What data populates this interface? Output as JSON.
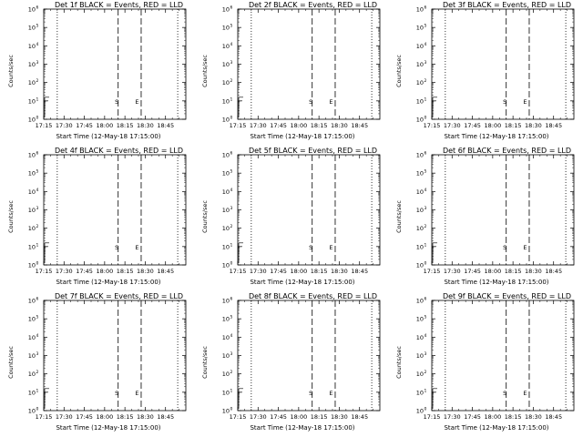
{
  "figure": {
    "ylabel": "Counts/sec",
    "xlabel": "Start Time (12-May-18 17:15:00)"
  },
  "colors": {
    "axes": "#000000",
    "events": "#000000",
    "lld": "#ff0000"
  },
  "chart_data": [
    {
      "type": "line",
      "title": "Det 1f BLACK = Events, RED = LLD",
      "xlabel": "Start Time (12-May-18 17:15:00)",
      "ylabel": "Counts/sec",
      "x_ticks": [
        "17:15",
        "17:30",
        "17:45",
        "18:00",
        "18:15",
        "18:30",
        "18:45"
      ],
      "y_ticks": [
        {
          "base": "10",
          "exp": "0"
        },
        {
          "base": "10",
          "exp": "1"
        },
        {
          "base": "10",
          "exp": "2"
        },
        {
          "base": "10",
          "exp": "3"
        },
        {
          "base": "10",
          "exp": "4"
        },
        {
          "base": "10",
          "exp": "5"
        },
        {
          "base": "10",
          "exp": "6"
        }
      ],
      "yscale": "log",
      "ylim": [
        1,
        1000000
      ],
      "xlim_minutes": [
        0,
        105
      ],
      "dotted_lines_minutes": [
        10,
        99
      ],
      "dashed_lines_minutes": [
        55,
        72
      ],
      "markers": [
        {
          "label": "S",
          "x_minutes": 56
        },
        {
          "label": "E",
          "x_minutes": 71
        }
      ],
      "grid": false
    },
    {
      "type": "line",
      "title": "Det 2f BLACK = Events, RED = LLD",
      "xlabel": "Start Time (12-May-18 17:15:00)",
      "ylabel": "Counts/sec",
      "x_ticks": [
        "17:15",
        "17:30",
        "17:45",
        "18:00",
        "18:15",
        "18:30",
        "18:45"
      ],
      "y_ticks": [
        {
          "base": "10",
          "exp": "0"
        },
        {
          "base": "10",
          "exp": "1"
        },
        {
          "base": "10",
          "exp": "2"
        },
        {
          "base": "10",
          "exp": "3"
        },
        {
          "base": "10",
          "exp": "4"
        },
        {
          "base": "10",
          "exp": "5"
        },
        {
          "base": "10",
          "exp": "6"
        }
      ],
      "yscale": "log",
      "ylim": [
        1,
        1000000
      ],
      "xlim_minutes": [
        0,
        105
      ],
      "dotted_lines_minutes": [
        10,
        99
      ],
      "dashed_lines_minutes": [
        55,
        72
      ],
      "markers": [
        {
          "label": "S",
          "x_minutes": 56
        },
        {
          "label": "E",
          "x_minutes": 71
        }
      ],
      "grid": false
    },
    {
      "type": "line",
      "title": "Det 3f BLACK = Events, RED = LLD",
      "xlabel": "Start Time (12-May-18 17:15:00)",
      "ylabel": "Counts/sec",
      "x_ticks": [
        "17:15",
        "17:30",
        "17:45",
        "18:00",
        "18:15",
        "18:30",
        "18:45"
      ],
      "y_ticks": [
        {
          "base": "10",
          "exp": "0"
        },
        {
          "base": "10",
          "exp": "1"
        },
        {
          "base": "10",
          "exp": "2"
        },
        {
          "base": "10",
          "exp": "3"
        },
        {
          "base": "10",
          "exp": "4"
        },
        {
          "base": "10",
          "exp": "5"
        },
        {
          "base": "10",
          "exp": "6"
        }
      ],
      "yscale": "log",
      "ylim": [
        1,
        1000000
      ],
      "xlim_minutes": [
        0,
        105
      ],
      "dotted_lines_minutes": [
        10,
        99
      ],
      "dashed_lines_minutes": [
        55,
        72
      ],
      "markers": [
        {
          "label": "S",
          "x_minutes": 56
        },
        {
          "label": "E",
          "x_minutes": 71
        }
      ],
      "grid": false
    },
    {
      "type": "line",
      "title": "Det 4f BLACK = Events, RED = LLD",
      "xlabel": "Start Time (12-May-18 17:15:00)",
      "ylabel": "Counts/sec",
      "x_ticks": [
        "17:15",
        "17:30",
        "17:45",
        "18:00",
        "18:15",
        "18:30",
        "18:45"
      ],
      "y_ticks": [
        {
          "base": "10",
          "exp": "0"
        },
        {
          "base": "10",
          "exp": "1"
        },
        {
          "base": "10",
          "exp": "2"
        },
        {
          "base": "10",
          "exp": "3"
        },
        {
          "base": "10",
          "exp": "4"
        },
        {
          "base": "10",
          "exp": "5"
        },
        {
          "base": "10",
          "exp": "6"
        }
      ],
      "yscale": "log",
      "ylim": [
        1,
        1000000
      ],
      "xlim_minutes": [
        0,
        105
      ],
      "dotted_lines_minutes": [
        10,
        99
      ],
      "dashed_lines_minutes": [
        55,
        72
      ],
      "markers": [
        {
          "label": "S",
          "x_minutes": 56
        },
        {
          "label": "E",
          "x_minutes": 71
        }
      ],
      "grid": false
    },
    {
      "type": "line",
      "title": "Det 5f BLACK = Events, RED = LLD",
      "xlabel": "Start Time (12-May-18 17:15:00)",
      "ylabel": "Counts/sec",
      "x_ticks": [
        "17:15",
        "17:30",
        "17:45",
        "18:00",
        "18:15",
        "18:30",
        "18:45"
      ],
      "y_ticks": [
        {
          "base": "10",
          "exp": "0"
        },
        {
          "base": "10",
          "exp": "1"
        },
        {
          "base": "10",
          "exp": "2"
        },
        {
          "base": "10",
          "exp": "3"
        },
        {
          "base": "10",
          "exp": "4"
        },
        {
          "base": "10",
          "exp": "5"
        },
        {
          "base": "10",
          "exp": "6"
        }
      ],
      "yscale": "log",
      "ylim": [
        1,
        1000000
      ],
      "xlim_minutes": [
        0,
        105
      ],
      "dotted_lines_minutes": [
        10,
        99
      ],
      "dashed_lines_minutes": [
        55,
        72
      ],
      "markers": [
        {
          "label": "S",
          "x_minutes": 56
        },
        {
          "label": "E",
          "x_minutes": 71
        }
      ],
      "grid": false
    },
    {
      "type": "line",
      "title": "Det 6f BLACK = Events, RED = LLD",
      "xlabel": "Start Time (12-May-18 17:15:00)",
      "ylabel": "Counts/sec",
      "x_ticks": [
        "17:15",
        "17:30",
        "17:45",
        "18:00",
        "18:15",
        "18:30",
        "18:45"
      ],
      "y_ticks": [
        {
          "base": "10",
          "exp": "0"
        },
        {
          "base": "10",
          "exp": "1"
        },
        {
          "base": "10",
          "exp": "2"
        },
        {
          "base": "10",
          "exp": "3"
        },
        {
          "base": "10",
          "exp": "4"
        },
        {
          "base": "10",
          "exp": "5"
        },
        {
          "base": "10",
          "exp": "6"
        }
      ],
      "yscale": "log",
      "ylim": [
        1,
        1000000
      ],
      "xlim_minutes": [
        0,
        105
      ],
      "dotted_lines_minutes": [
        10,
        99
      ],
      "dashed_lines_minutes": [
        55,
        72
      ],
      "markers": [
        {
          "label": "S",
          "x_minutes": 56
        },
        {
          "label": "E",
          "x_minutes": 71
        }
      ],
      "grid": false
    },
    {
      "type": "line",
      "title": "Det 7f BLACK = Events, RED = LLD",
      "xlabel": "Start Time (12-May-18 17:15:00)",
      "ylabel": "Counts/sec",
      "x_ticks": [
        "17:15",
        "17:30",
        "17:45",
        "18:00",
        "18:15",
        "18:30",
        "18:45"
      ],
      "y_ticks": [
        {
          "base": "10",
          "exp": "0"
        },
        {
          "base": "10",
          "exp": "1"
        },
        {
          "base": "10",
          "exp": "2"
        },
        {
          "base": "10",
          "exp": "3"
        },
        {
          "base": "10",
          "exp": "4"
        },
        {
          "base": "10",
          "exp": "5"
        },
        {
          "base": "10",
          "exp": "6"
        }
      ],
      "yscale": "log",
      "ylim": [
        1,
        1000000
      ],
      "xlim_minutes": [
        0,
        105
      ],
      "dotted_lines_minutes": [
        10,
        99
      ],
      "dashed_lines_minutes": [
        55,
        72
      ],
      "markers": [
        {
          "label": "S",
          "x_minutes": 56
        },
        {
          "label": "E",
          "x_minutes": 71
        }
      ],
      "grid": false
    },
    {
      "type": "line",
      "title": "Det 8f BLACK = Events, RED = LLD",
      "xlabel": "Start Time (12-May-18 17:15:00)",
      "ylabel": "Counts/sec",
      "x_ticks": [
        "17:15",
        "17:30",
        "17:45",
        "18:00",
        "18:15",
        "18:30",
        "18:45"
      ],
      "y_ticks": [
        {
          "base": "10",
          "exp": "0"
        },
        {
          "base": "10",
          "exp": "1"
        },
        {
          "base": "10",
          "exp": "2"
        },
        {
          "base": "10",
          "exp": "3"
        },
        {
          "base": "10",
          "exp": "4"
        },
        {
          "base": "10",
          "exp": "5"
        },
        {
          "base": "10",
          "exp": "6"
        }
      ],
      "yscale": "log",
      "ylim": [
        1,
        1000000
      ],
      "xlim_minutes": [
        0,
        105
      ],
      "dotted_lines_minutes": [
        10,
        99
      ],
      "dashed_lines_minutes": [
        55,
        72
      ],
      "markers": [
        {
          "label": "S",
          "x_minutes": 56
        },
        {
          "label": "E",
          "x_minutes": 71
        }
      ],
      "grid": false
    },
    {
      "type": "line",
      "title": "Det 9f BLACK = Events, RED = LLD",
      "xlabel": "Start Time (12-May-18 17:15:00)",
      "ylabel": "Counts/sec",
      "x_ticks": [
        "17:15",
        "17:30",
        "17:45",
        "18:00",
        "18:15",
        "18:30",
        "18:45"
      ],
      "y_ticks": [
        {
          "base": "10",
          "exp": "0"
        },
        {
          "base": "10",
          "exp": "1"
        },
        {
          "base": "10",
          "exp": "2"
        },
        {
          "base": "10",
          "exp": "3"
        },
        {
          "base": "10",
          "exp": "4"
        },
        {
          "base": "10",
          "exp": "5"
        },
        {
          "base": "10",
          "exp": "6"
        }
      ],
      "yscale": "log",
      "ylim": [
        1,
        1000000
      ],
      "xlim_minutes": [
        0,
        105
      ],
      "dotted_lines_minutes": [
        10,
        99
      ],
      "dashed_lines_minutes": [
        55,
        72
      ],
      "markers": [
        {
          "label": "S",
          "x_minutes": 56
        },
        {
          "label": "E",
          "x_minutes": 71
        }
      ],
      "grid": false
    }
  ]
}
